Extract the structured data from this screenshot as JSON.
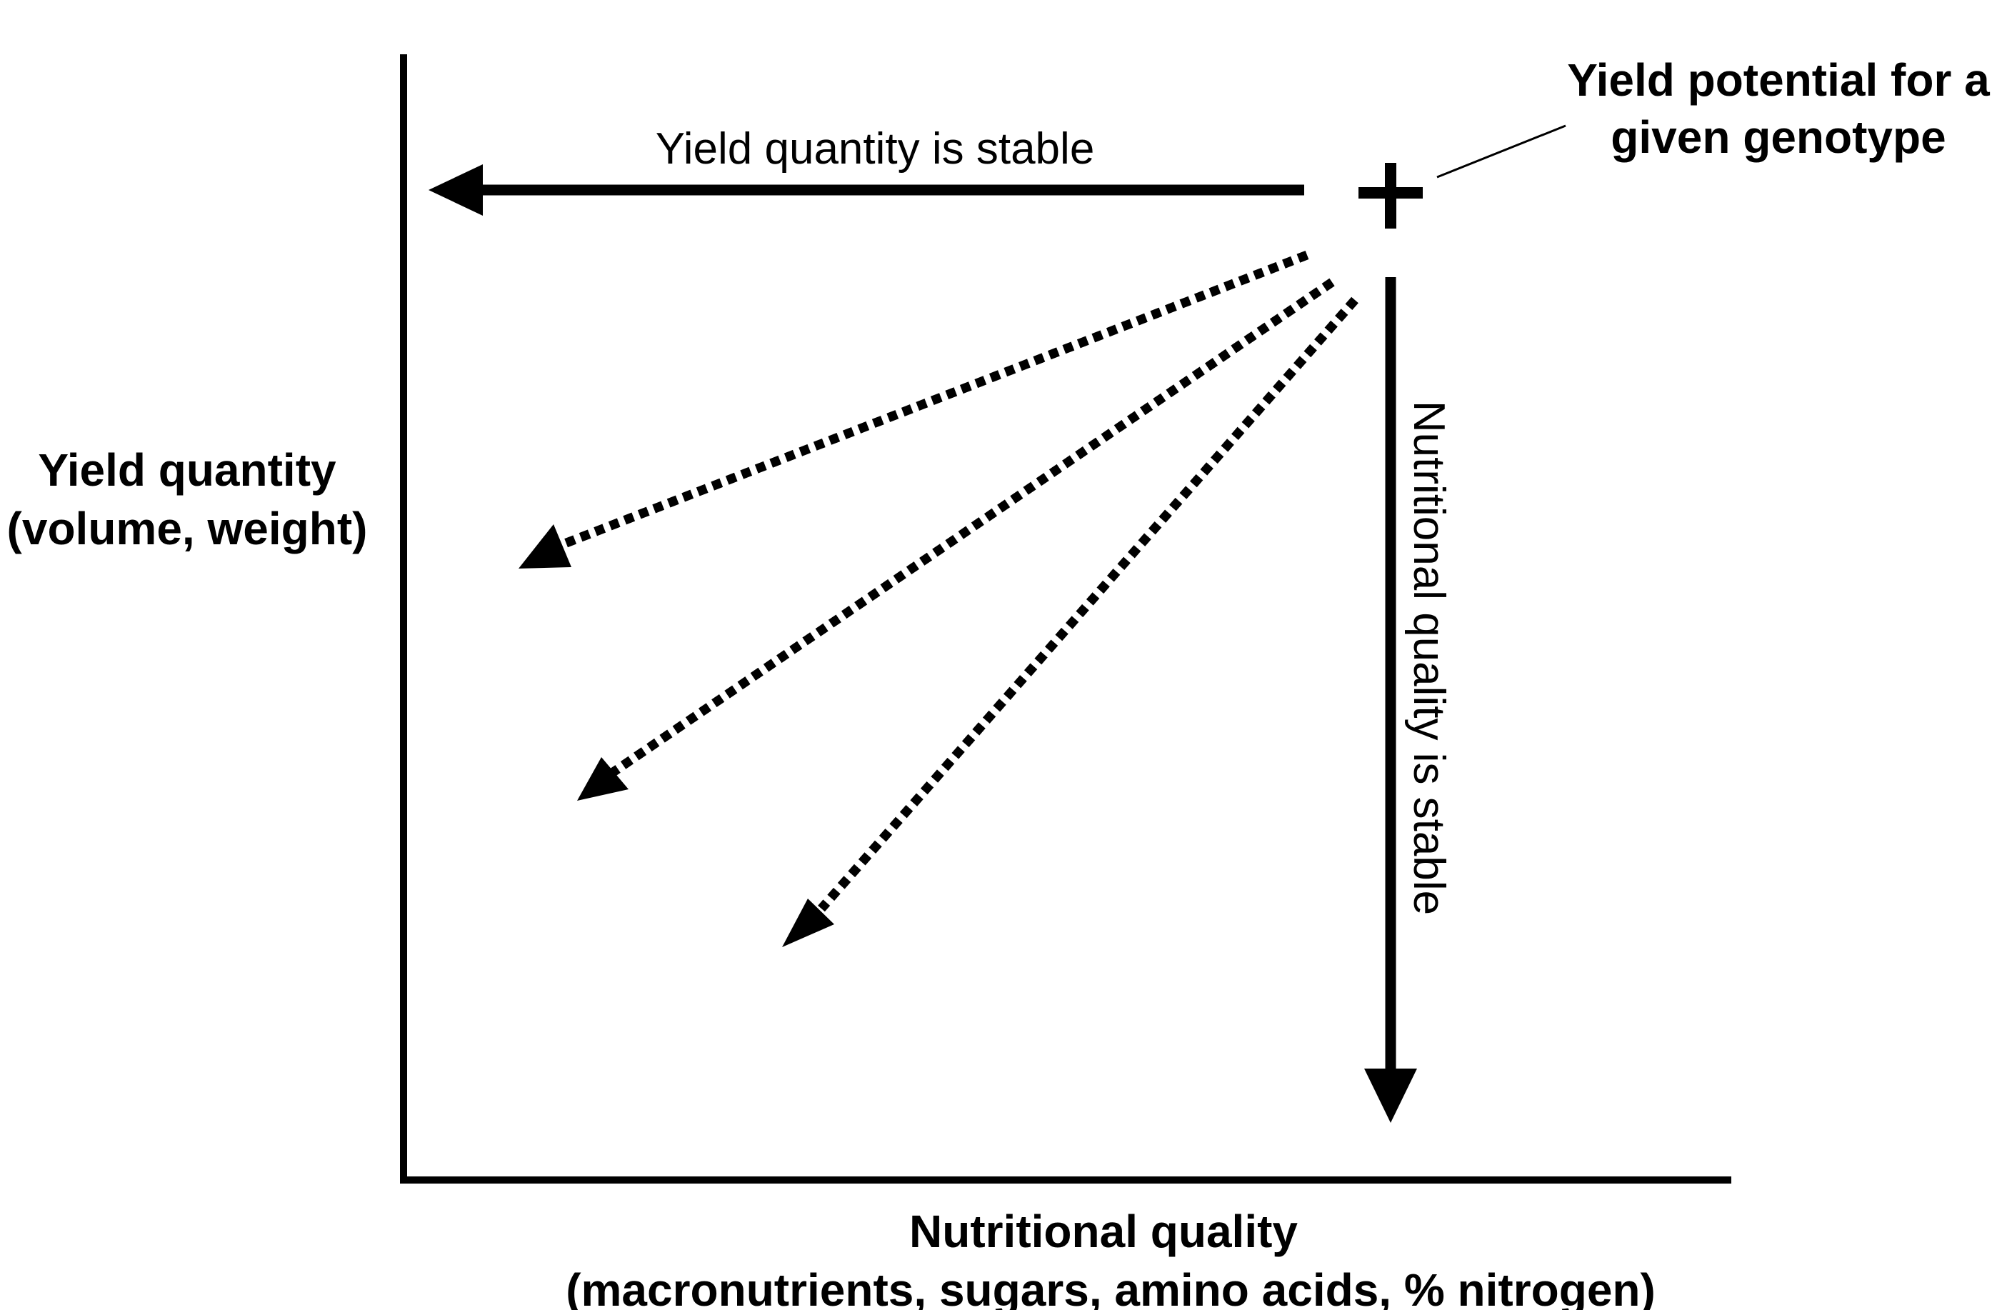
{
  "diagram": {
    "y_axis_label": {
      "line1": "Yield quantity",
      "line2": "(volume, weight)"
    },
    "x_axis_label": {
      "line1": "Nutritional quality",
      "line2": "(macronutrients, sugars, amino acids, % nitrogen)"
    },
    "potential_label": {
      "line1": "Yield potential for a",
      "line2": "given genotype"
    },
    "horizontal_arrow_label": "Yield quantity is stable",
    "vertical_arrow_label": "Nutritional quality is stable",
    "colors": {
      "ink": "#000000",
      "background": "#ffffff"
    },
    "marker_symbol": "+",
    "dotted_arrow_count": 3
  }
}
